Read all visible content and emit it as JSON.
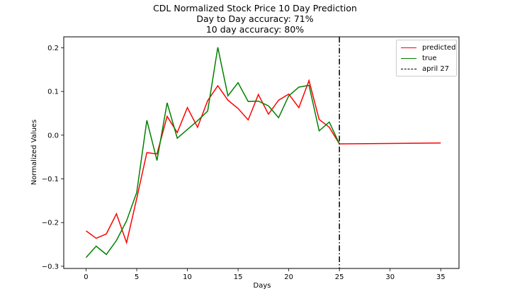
{
  "chart_data": {
    "type": "line",
    "title_lines": [
      "CDL Normalized Stock Price 10 Day Prediction",
      "Day to Day accuracy: 71%",
      "10 day accuracy: 80%"
    ],
    "xlabel": "Days",
    "ylabel": "Normalized Values",
    "xlim": [
      -2.2,
      36.8
    ],
    "ylim": [
      -0.305,
      0.225
    ],
    "xticks": [
      0,
      5,
      10,
      15,
      20,
      25,
      30,
      35
    ],
    "xtick_labels": [
      "0",
      "5",
      "10",
      "15",
      "20",
      "25",
      "30",
      "35"
    ],
    "yticks": [
      -0.3,
      -0.2,
      -0.1,
      0.0,
      0.1,
      0.2
    ],
    "ytick_labels": [
      "−0.3",
      "−0.2",
      "−0.1",
      "0.0",
      "0.1",
      "0.2"
    ],
    "grid": false,
    "legend_position": "upper right",
    "series": [
      {
        "name": "predicted",
        "color": "#ff0000",
        "x": [
          0,
          1,
          2,
          3,
          4,
          5,
          6,
          7,
          8,
          9,
          10,
          11,
          12,
          13,
          14,
          15,
          16,
          17,
          18,
          19,
          20,
          21,
          22,
          23,
          24,
          25,
          35
        ],
        "values": [
          -0.219,
          -0.236,
          -0.226,
          -0.18,
          -0.246,
          -0.145,
          -0.04,
          -0.043,
          0.043,
          0.006,
          0.063,
          0.018,
          0.079,
          0.113,
          0.08,
          0.061,
          0.035,
          0.093,
          0.048,
          0.08,
          0.094,
          0.063,
          0.125,
          0.036,
          0.018,
          -0.02,
          -0.018
        ]
      },
      {
        "name": "true",
        "color": "#008000",
        "x": [
          0,
          1,
          2,
          3,
          4,
          5,
          6,
          7,
          8,
          9,
          10,
          11,
          12,
          13,
          14,
          15,
          16,
          17,
          18,
          19,
          20,
          21,
          22,
          23,
          24,
          25
        ],
        "values": [
          -0.28,
          -0.254,
          -0.273,
          -0.241,
          -0.196,
          -0.131,
          0.034,
          -0.058,
          0.074,
          -0.007,
          0.013,
          0.033,
          0.055,
          0.201,
          0.09,
          0.12,
          0.077,
          0.078,
          0.067,
          0.04,
          0.09,
          0.11,
          0.114,
          0.01,
          0.03,
          -0.02
        ]
      }
    ],
    "vline": {
      "x": 25,
      "label": "april 27",
      "color": "#000000",
      "style": "dashdot"
    }
  }
}
